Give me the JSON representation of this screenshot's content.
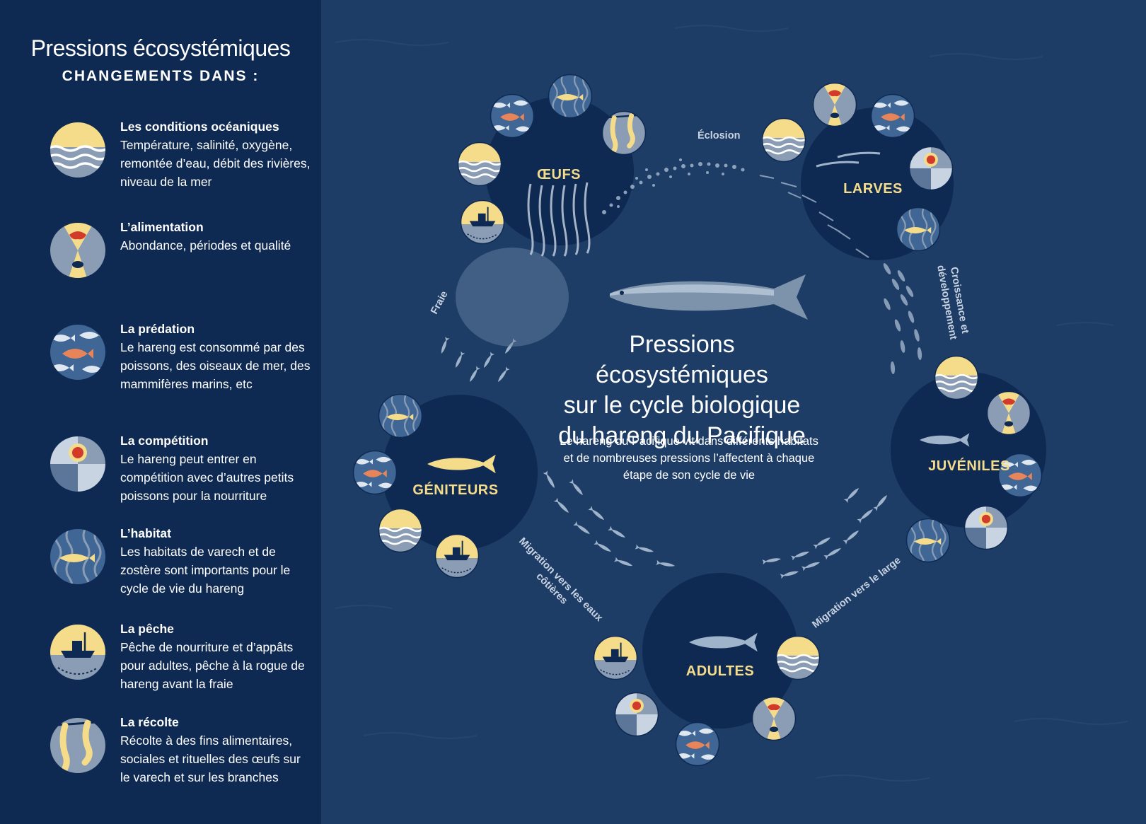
{
  "sidebar": {
    "title": "Pressions écosystémiques",
    "subtitle": "CHANGEMENTS DANS :",
    "items": [
      {
        "icon": "ocean-conditions-icon",
        "title": "Les conditions océaniques",
        "desc": "Température, salinité, oxygène, remontée d’eau, débit des rivières, niveau de la mer"
      },
      {
        "icon": "food-icon",
        "title": "L’alimentation",
        "desc": "Abondance, périodes et qualité"
      },
      {
        "icon": "predation-icon",
        "title": "La prédation",
        "desc": "Le hareng est consommé par des poissons, des oiseaux de mer, des mammifères marins, etc"
      },
      {
        "icon": "competition-icon",
        "title": "La compétition",
        "desc": "Le hareng peut entrer en compétition avec d’autres petits poissons pour la nourriture"
      },
      {
        "icon": "habitat-icon",
        "title": "L’habitat",
        "desc": "Les habitats de varech et de zostère sont importants pour le cycle de vie du hareng"
      },
      {
        "icon": "fishing-icon",
        "title": "La pêche",
        "desc": "Pêche de nourriture et d’appâts pour adultes, pêche à la rogue de hareng avant la fraie"
      },
      {
        "icon": "harvest-icon",
        "title": "La récolte",
        "desc": "Récolte à des fins alimentaires, sociales et rituelles des œufs sur le varech et sur les branches"
      }
    ]
  },
  "center": {
    "title_lines": [
      "Pressions écosystémiques",
      "sur le cycle biologique",
      "du hareng du Pacifique"
    ],
    "desc": "Le hareng du Pacifique vit dans différents habitats et de nombreuses pressions l’affectent à chaque étape de son cycle de vie"
  },
  "stages": {
    "oeufs": "ŒUFS",
    "larves": "LARVES",
    "juveniles": "JUVÉNILES",
    "adultes": "ADULTES",
    "geniteurs": "GÉNITEURS"
  },
  "transitions": {
    "eclosion": "Éclosion",
    "croissance_1": "Croissance et",
    "croissance_2": "développement",
    "migration_large": "Migration vers le large",
    "migration_cotieres_1": "Migration vers les eaux",
    "migration_cotieres_2": "côtières",
    "fraie": "Fraie"
  },
  "colors": {
    "background": "#1e3d66",
    "sidebar": "#0f2a52",
    "stage_circle": "#0f2a52",
    "accent_yellow": "#f5dc8a",
    "icon_grey": "#8a9db4",
    "salmon": "#e8845a",
    "red": "#d23b2a"
  }
}
